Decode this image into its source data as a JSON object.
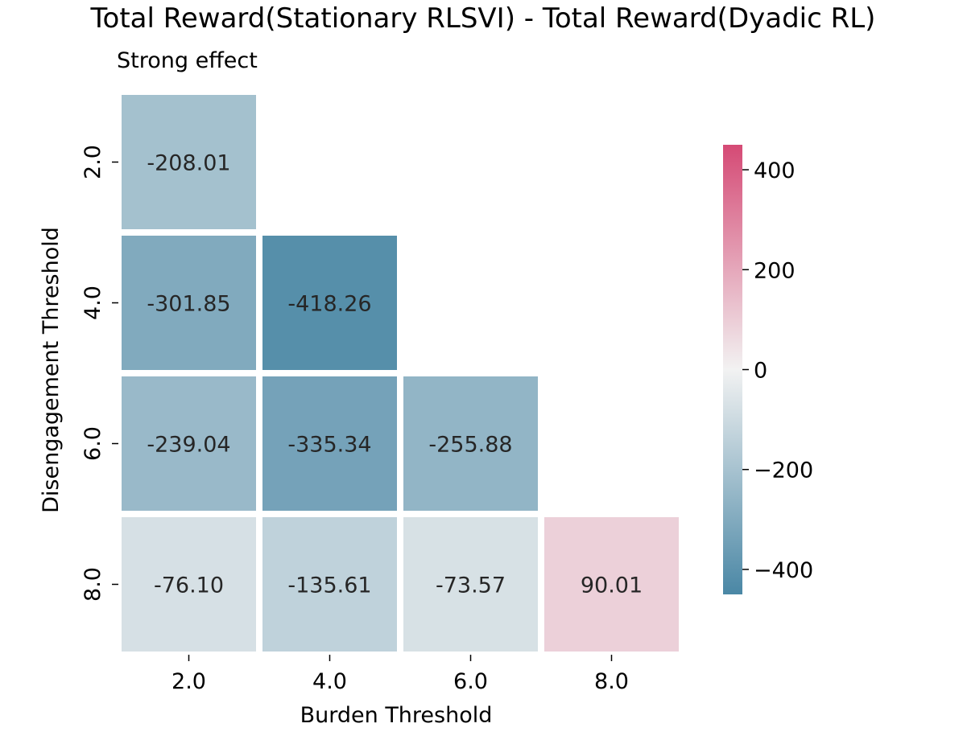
{
  "chart_data": {
    "type": "heatmap",
    "title": "Total Reward(Stationary RLSVI) - Total Reward(Dyadic RL)",
    "subtitle": "Strong effect",
    "xlabel": "Burden Threshold",
    "ylabel": "Disengagement Threshold",
    "x_categories": [
      "2.0",
      "4.0",
      "6.0",
      "8.0"
    ],
    "y_categories": [
      "2.0",
      "4.0",
      "6.0",
      "8.0"
    ],
    "values": [
      [
        -208.01,
        null,
        null,
        null
      ],
      [
        -301.85,
        -418.26,
        null,
        null
      ],
      [
        -239.04,
        -335.34,
        -255.88,
        null
      ],
      [
        -76.1,
        -135.61,
        -73.57,
        90.01
      ]
    ],
    "value_labels": [
      [
        "-208.01",
        "",
        "",
        ""
      ],
      [
        "-301.85",
        "-418.26",
        "",
        ""
      ],
      [
        "-239.04",
        "-335.34",
        "-255.88",
        ""
      ],
      [
        "-76.10",
        "-135.61",
        "-73.57",
        "90.01"
      ]
    ],
    "colorbar": {
      "vmin": -450,
      "vmax": 450,
      "ticks": [
        400,
        200,
        0,
        -200,
        -400
      ],
      "tick_labels": [
        "400",
        "200",
        "0",
        "−200",
        "−400"
      ],
      "colormap": {
        "negative": "#4a87a5",
        "center": "#f2f2f2",
        "positive": "#d54a75"
      }
    },
    "grid": false,
    "legend": "colorbar-right"
  }
}
